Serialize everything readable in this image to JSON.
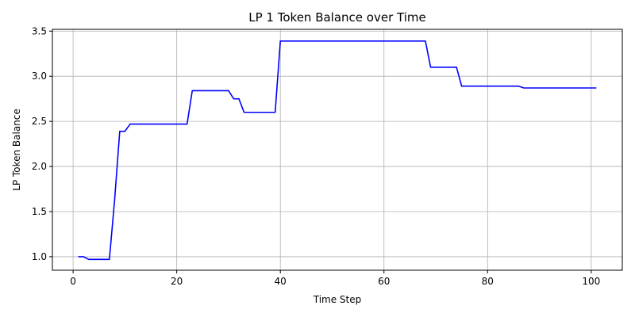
{
  "chart_data": {
    "type": "line",
    "title": "LP 1 Token Balance over Time",
    "xlabel": "Time Step",
    "ylabel": "LP Token Balance",
    "xlim": [
      -4,
      106
    ],
    "ylim": [
      0.85,
      3.52
    ],
    "xticks": [
      0,
      20,
      40,
      60,
      80,
      100
    ],
    "xtick_labels": [
      "0",
      "20",
      "40",
      "60",
      "80",
      "100"
    ],
    "yticks": [
      1.0,
      1.5,
      2.0,
      2.5,
      3.0,
      3.5
    ],
    "ytick_labels": [
      "1.0",
      "1.5",
      "2.0",
      "2.5",
      "3.0",
      "3.5"
    ],
    "grid": true,
    "series": [
      {
        "color": "#0000ff",
        "x": [
          1,
          2,
          3,
          4,
          5,
          6,
          7,
          8,
          9,
          10,
          11,
          12,
          13,
          14,
          15,
          16,
          17,
          18,
          19,
          20,
          21,
          22,
          23,
          24,
          25,
          26,
          27,
          28,
          29,
          30,
          31,
          32,
          33,
          34,
          35,
          36,
          37,
          38,
          39,
          40,
          41,
          42,
          43,
          44,
          45,
          46,
          47,
          48,
          49,
          50,
          51,
          52,
          53,
          54,
          55,
          56,
          57,
          58,
          59,
          60,
          61,
          62,
          63,
          64,
          65,
          66,
          67,
          68,
          69,
          70,
          71,
          72,
          73,
          74,
          75,
          76,
          77,
          78,
          79,
          80,
          81,
          82,
          83,
          84,
          85,
          86,
          87,
          88,
          89,
          90,
          91,
          92,
          93,
          94,
          95,
          96,
          97,
          98,
          99,
          100,
          101
        ],
        "y": [
          1.0,
          1.0,
          0.97,
          0.97,
          0.97,
          0.97,
          0.97,
          1.62,
          2.39,
          2.39,
          2.47,
          2.47,
          2.47,
          2.47,
          2.47,
          2.47,
          2.47,
          2.47,
          2.47,
          2.47,
          2.47,
          2.47,
          2.84,
          2.84,
          2.84,
          2.84,
          2.84,
          2.84,
          2.84,
          2.84,
          2.75,
          2.75,
          2.6,
          2.6,
          2.6,
          2.6,
          2.6,
          2.6,
          2.6,
          3.39,
          3.39,
          3.39,
          3.39,
          3.39,
          3.39,
          3.39,
          3.39,
          3.39,
          3.39,
          3.39,
          3.39,
          3.39,
          3.39,
          3.39,
          3.39,
          3.39,
          3.39,
          3.39,
          3.39,
          3.39,
          3.39,
          3.39,
          3.39,
          3.39,
          3.39,
          3.39,
          3.39,
          3.39,
          3.1,
          3.1,
          3.1,
          3.1,
          3.1,
          3.1,
          2.89,
          2.89,
          2.89,
          2.89,
          2.89,
          2.89,
          2.89,
          2.89,
          2.89,
          2.89,
          2.89,
          2.89,
          2.87,
          2.87,
          2.87,
          2.87,
          2.87,
          2.87,
          2.87,
          2.87,
          2.87,
          2.87,
          2.87,
          2.87,
          2.87,
          2.87,
          2.87
        ]
      }
    ]
  }
}
